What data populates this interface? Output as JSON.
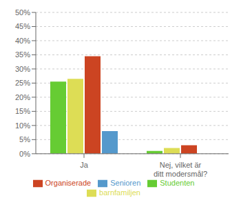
{
  "chart_data": {
    "type": "bar",
    "categories": [
      "Ja",
      "Nej, vilket är ditt modersmål?"
    ],
    "series": [
      {
        "name": "Studenten",
        "color": "#66cc33",
        "values": [
          25.5,
          1.0
        ]
      },
      {
        "name": "barnfamiljen",
        "color": "#dddd55",
        "values": [
          26.5,
          2.0
        ]
      },
      {
        "name": "Organiserade",
        "color": "#cc4422",
        "values": [
          34.5,
          3.0
        ]
      },
      {
        "name": "Senioren",
        "color": "#5599cc",
        "values": [
          8.0,
          0.0
        ]
      }
    ],
    "ylim": [
      0,
      50
    ],
    "yticks": [
      {
        "value": 0,
        "label": "0%"
      },
      {
        "value": 5,
        "label": "5%"
      },
      {
        "value": 10,
        "label": "10%"
      },
      {
        "value": 15,
        "label": "15%"
      },
      {
        "value": 20,
        "label": "20%"
      },
      {
        "value": 25,
        "label": "25%"
      },
      {
        "value": 30,
        "label": "30%"
      },
      {
        "value": 35,
        "label": "35%"
      },
      {
        "value": 40,
        "label": "40%"
      },
      {
        "value": 45,
        "label": "45%"
      },
      {
        "value": 50,
        "label": "50%"
      }
    ],
    "grid": true,
    "legend": "bottom"
  }
}
